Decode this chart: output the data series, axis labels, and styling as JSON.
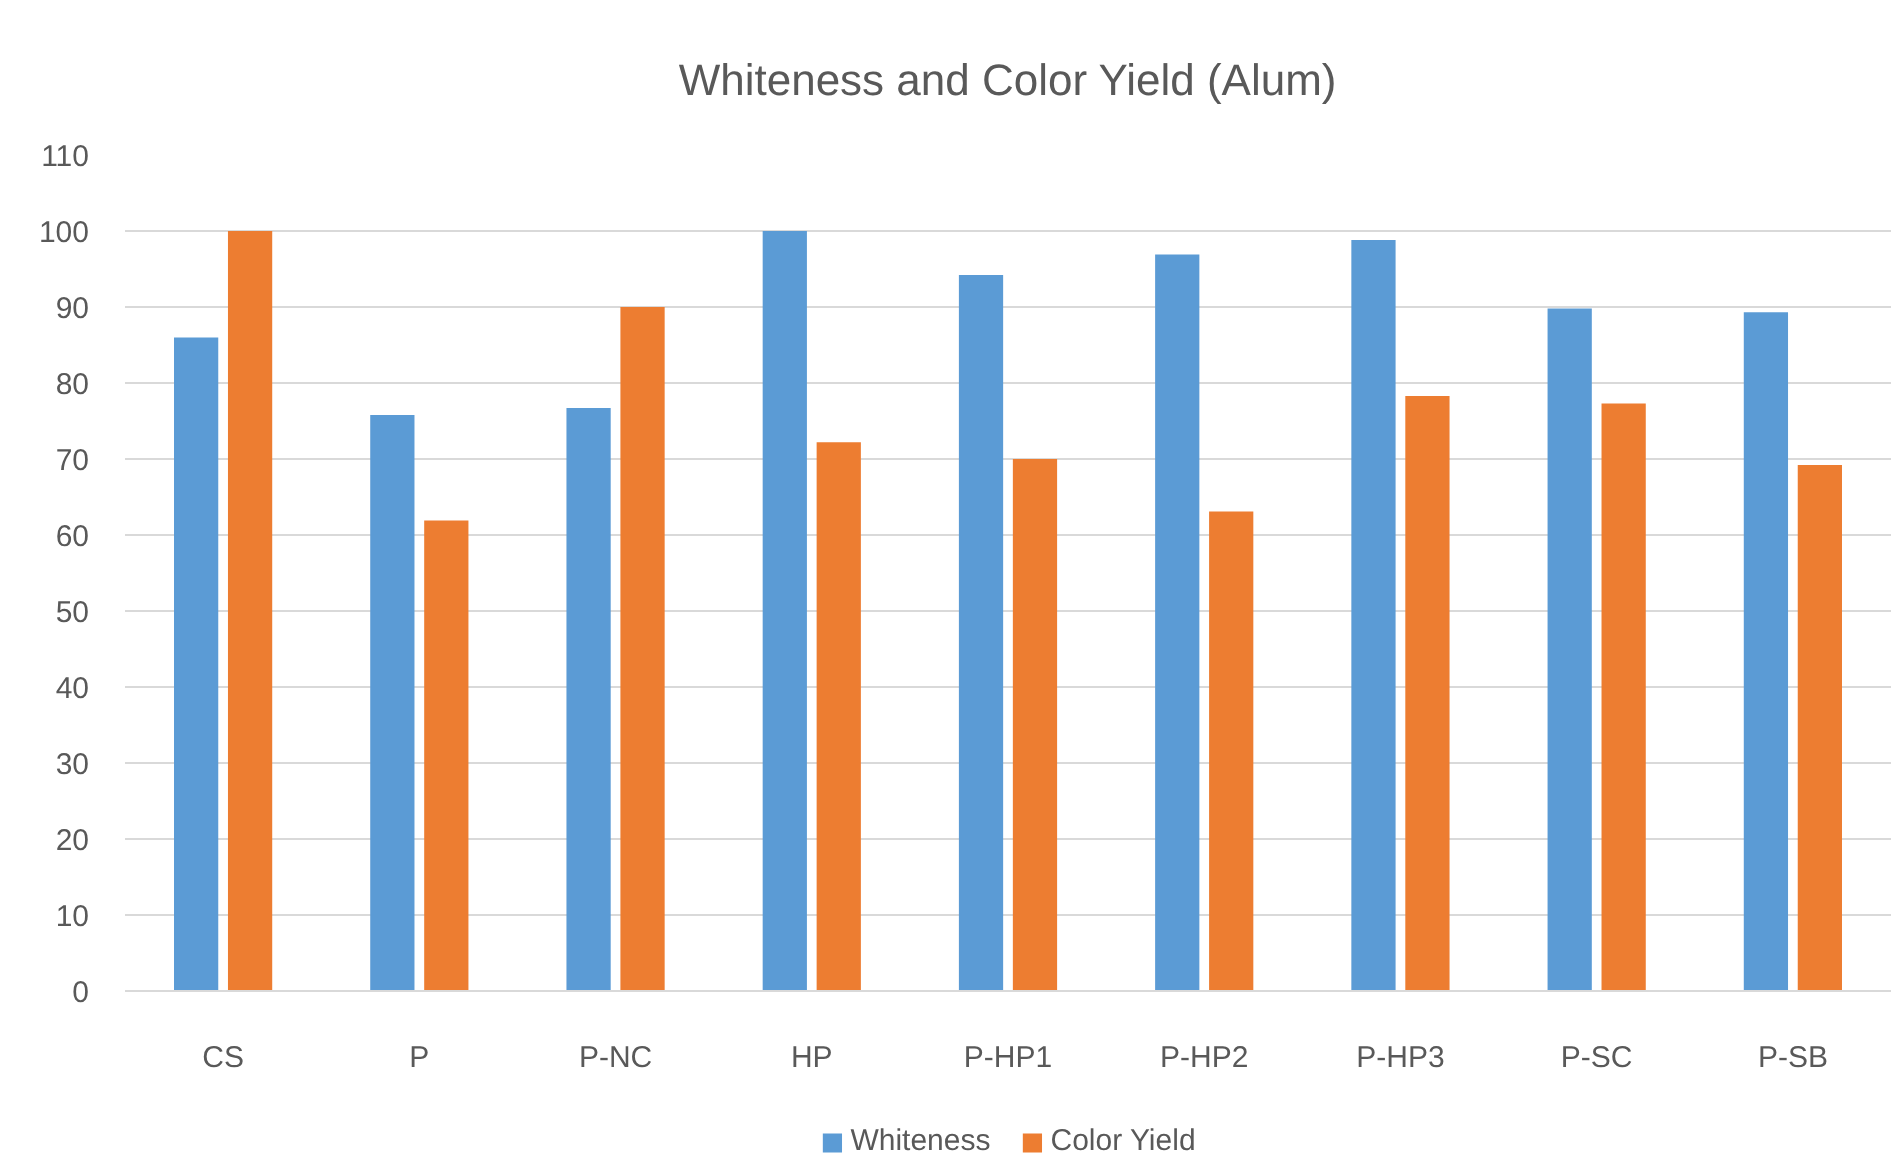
{
  "chart_data": {
    "type": "bar",
    "title": "Whiteness and Color Yield (Alum)",
    "categories": [
      "CS",
      "P",
      "P-NC",
      "HP",
      "P-HP1",
      "P-HP2",
      "P-HP3",
      "P-SC",
      "P-SB"
    ],
    "series": [
      {
        "name": "Whiteness",
        "color": "#5b9bd5",
        "values": [
          86,
          75.8,
          76.7,
          100,
          94.2,
          96.9,
          98.8,
          89.8,
          89.3
        ]
      },
      {
        "name": "Color Yield",
        "color": "#ed7d31",
        "values": [
          100,
          61.9,
          90,
          72.2,
          70,
          63.1,
          78.3,
          77.3,
          69.2
        ]
      }
    ],
    "ylim": [
      0,
      110
    ],
    "yticks": [
      0,
      10,
      20,
      30,
      40,
      50,
      60,
      70,
      80,
      90,
      100,
      110
    ],
    "grid": "y",
    "legend": "bottom"
  }
}
